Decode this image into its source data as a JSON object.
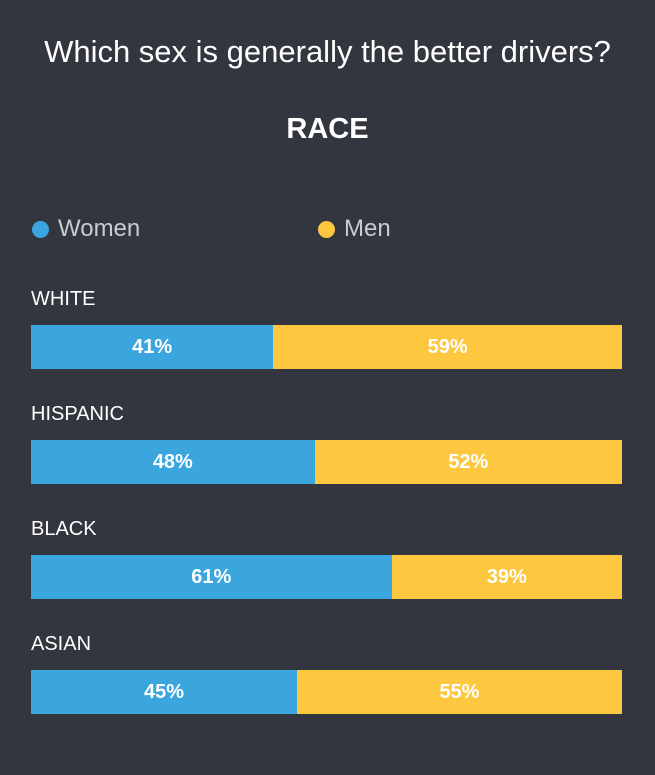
{
  "chart_data": {
    "type": "bar",
    "orientation": "horizontal",
    "stacked": true,
    "percent": true,
    "title": "Which sex is generally the better drivers?",
    "subtitle": "RACE",
    "categories": [
      "WHITE",
      "HISPANIC",
      "BLACK",
      "ASIAN"
    ],
    "series": [
      {
        "name": "Women",
        "color": "#3aa6dd",
        "values": [
          41,
          48,
          61,
          45
        ],
        "labels": [
          "41%",
          "48%",
          "61%",
          "45%"
        ]
      },
      {
        "name": "Men",
        "color": "#fdc840",
        "values": [
          59,
          52,
          39,
          55
        ],
        "labels": [
          "59%",
          "52%",
          "39%",
          "55%"
        ]
      }
    ],
    "xlim": [
      0,
      100
    ],
    "legend_position": "top"
  }
}
